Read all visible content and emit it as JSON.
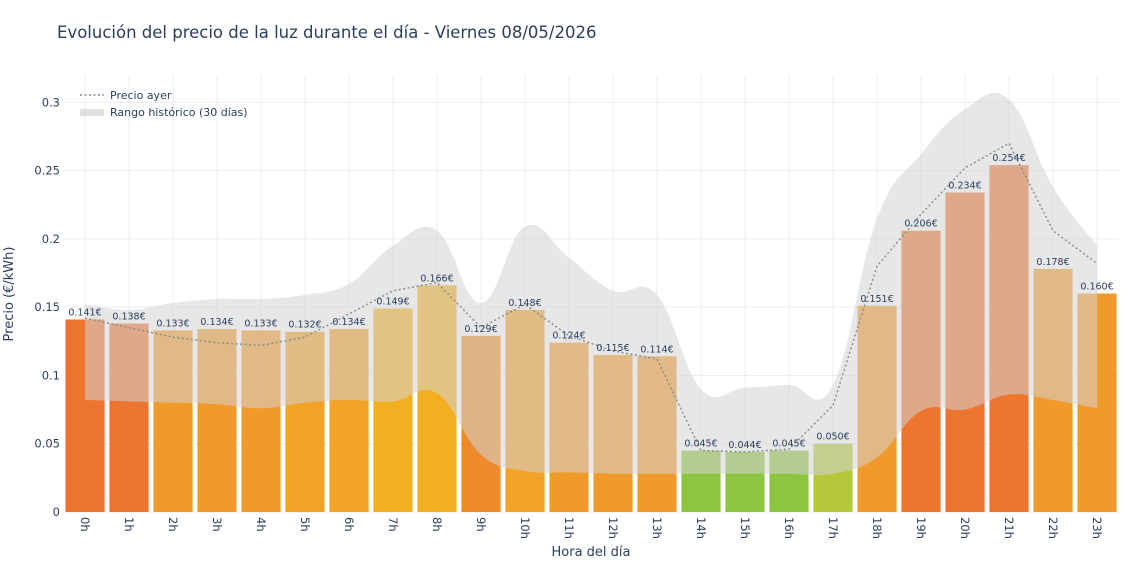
{
  "chart_data": {
    "type": "bar",
    "title": "Evolución del precio de la luz durante el día - Viernes 08/05/2026",
    "xlabel": "Hora del día",
    "ylabel": "Precio (€/kWh)",
    "ylim": [
      0,
      0.32
    ],
    "yticks": [
      0,
      0.05,
      0.1,
      0.15,
      0.2,
      0.25,
      0.3
    ],
    "ytick_labels": [
      "0",
      "0.05",
      "0.1",
      "0.15",
      "0.2",
      "0.25",
      "0.3"
    ],
    "grid": true,
    "legend_position": "top-left",
    "categories": [
      "0h",
      "1h",
      "2h",
      "3h",
      "4h",
      "5h",
      "6h",
      "7h",
      "8h",
      "9h",
      "10h",
      "11h",
      "12h",
      "13h",
      "14h",
      "15h",
      "16h",
      "17h",
      "18h",
      "19h",
      "20h",
      "21h",
      "22h",
      "23h"
    ],
    "series": [
      {
        "type": "bar",
        "values": [
          0.141,
          0.138,
          0.133,
          0.134,
          0.133,
          0.132,
          0.134,
          0.149,
          0.166,
          0.129,
          0.148,
          0.124,
          0.115,
          0.114,
          0.045,
          0.044,
          0.045,
          0.05,
          0.151,
          0.206,
          0.234,
          0.254,
          0.178,
          0.16
        ],
        "data_labels": [
          "0.141€",
          "0.138€",
          "0.133€",
          "0.134€",
          "0.133€",
          "0.132€",
          "0.134€",
          "0.149€",
          "0.166€",
          "0.129€",
          "0.148€",
          "0.124€",
          "0.115€",
          "0.114€",
          "0.045€",
          "0.044€",
          "0.045€",
          "0.050€",
          "0.151€",
          "0.206€",
          "0.234€",
          "0.254€",
          "0.178€",
          "0.160€"
        ],
        "colors": [
          "#ee7530",
          "#ee7530",
          "#f09a2a",
          "#f09a2a",
          "#f09a2a",
          "#f2a226",
          "#f2a226",
          "#f2b020",
          "#f2b020",
          "#ee8a2c",
          "#f2a226",
          "#f09a2a",
          "#f09a2a",
          "#f09a2a",
          "#8cc63e",
          "#8cc63e",
          "#8cc63e",
          "#b4c83a",
          "#f09a2a",
          "#ee7530",
          "#ee7530",
          "#ee7530",
          "#f09a2a",
          "#f09a2a"
        ]
      },
      {
        "name": "Precio ayer",
        "type": "line",
        "style": "dotted",
        "color": "#7f8c8d",
        "values": [
          0.142,
          0.135,
          0.128,
          0.124,
          0.122,
          0.128,
          0.145,
          0.162,
          0.168,
          0.135,
          0.152,
          0.129,
          0.118,
          0.112,
          0.045,
          0.044,
          0.046,
          0.078,
          0.18,
          0.218,
          0.252,
          0.27,
          0.206,
          0.182
        ]
      },
      {
        "name": "Rango histórico (30 días)",
        "type": "area_band",
        "color": "#d3d3d3",
        "upper": [
          0.152,
          0.148,
          0.153,
          0.156,
          0.156,
          0.159,
          0.167,
          0.195,
          0.206,
          0.153,
          0.209,
          0.186,
          0.162,
          0.159,
          0.09,
          0.091,
          0.093,
          0.093,
          0.215,
          0.262,
          0.295,
          0.302,
          0.238,
          0.195
        ],
        "lower": [
          0.082,
          0.081,
          0.08,
          0.079,
          0.076,
          0.08,
          0.082,
          0.081,
          0.087,
          0.042,
          0.03,
          0.029,
          0.028,
          0.028,
          0.028,
          0.028,
          0.028,
          0.028,
          0.04,
          0.074,
          0.075,
          0.086,
          0.082,
          0.076
        ]
      }
    ]
  }
}
